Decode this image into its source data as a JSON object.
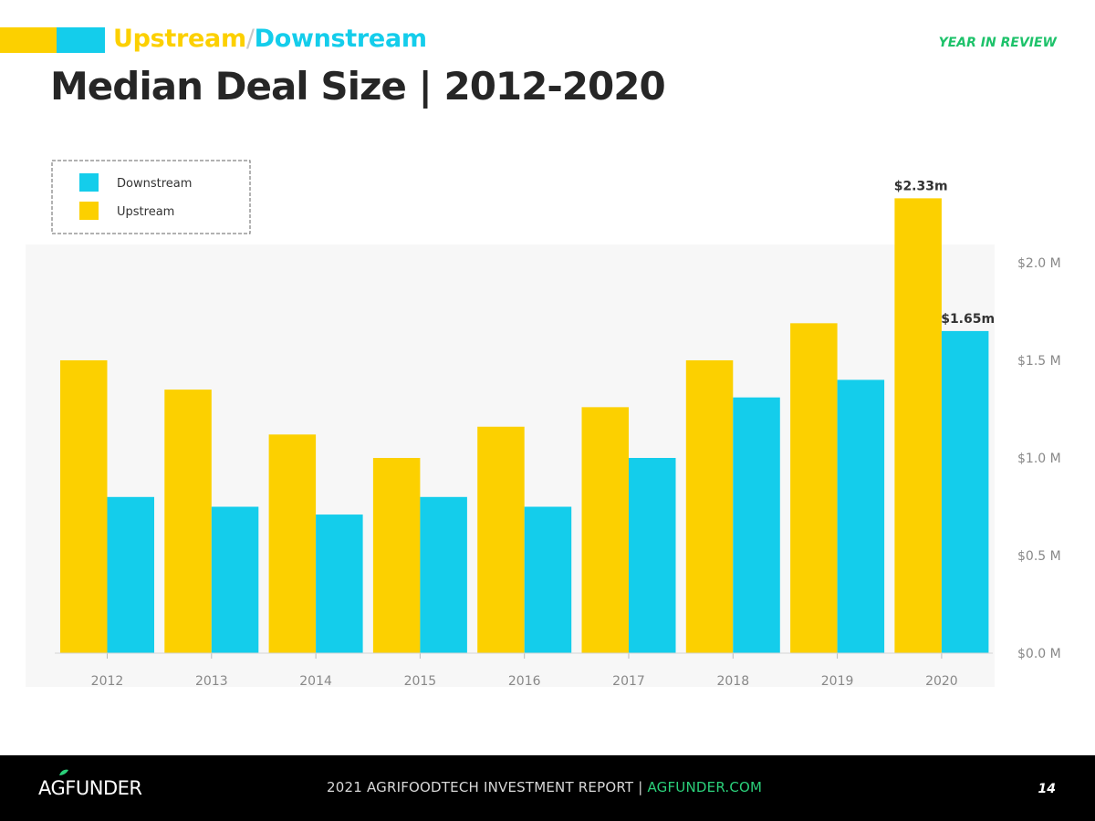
{
  "header": {
    "section_upstream": "Upstream",
    "section_separator": "/",
    "section_downstream": "Downstream",
    "year_in_review": "YEAR IN REVIEW",
    "title": "Median Deal Size |  2012-2020"
  },
  "colors": {
    "upstream": "#fcd000",
    "downstream": "#14cdeb",
    "accent_green": "#1dc26a",
    "title": "#262626",
    "axis_text": "#888888"
  },
  "chart_data": {
    "type": "bar",
    "categories": [
      "2012",
      "2013",
      "2014",
      "2015",
      "2016",
      "2017",
      "2018",
      "2019",
      "2020"
    ],
    "series": [
      {
        "name": "Upstream",
        "values": [
          1.5,
          1.35,
          1.12,
          1.0,
          1.16,
          1.26,
          1.5,
          1.69,
          2.33
        ]
      },
      {
        "name": "Downstream",
        "values": [
          0.8,
          0.75,
          0.71,
          0.8,
          0.75,
          1.0,
          1.31,
          1.4,
          1.65
        ]
      }
    ],
    "ylim": [
      0,
      2.5
    ],
    "yticks": [
      {
        "value": 0,
        "label": "$0.0 M"
      },
      {
        "value": 0.5,
        "label": "$0.5 M"
      },
      {
        "value": 1.0,
        "label": "$1.0 M"
      },
      {
        "value": 1.5,
        "label": "$1.5 M"
      },
      {
        "value": 2.0,
        "label": "$2.0 M"
      }
    ],
    "y_axis_side": "right",
    "grid": false,
    "legend_position": "top-left",
    "legend_order": [
      "Downstream",
      "Upstream"
    ],
    "annotations": [
      {
        "category": "2020",
        "series": "Upstream",
        "text": "$2.33m"
      },
      {
        "category": "2020",
        "series": "Downstream",
        "text": "$1.65m"
      }
    ]
  },
  "footer": {
    "logo_a": "A",
    "logo_g": "G",
    "logo_rest": "FUNDER",
    "report_text": "2021 AGRIFOODTECH INVESTMENT REPORT  |  ",
    "report_link": "AGFUNDER.COM",
    "page_number": "14"
  }
}
